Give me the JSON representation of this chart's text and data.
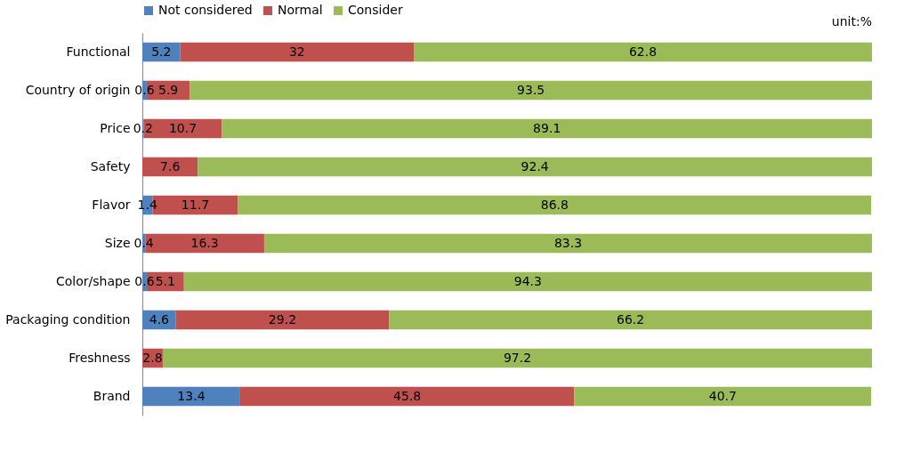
{
  "chart_data": {
    "type": "bar",
    "orientation": "horizontal",
    "stacked": true,
    "data_labels": true,
    "categories": [
      "Functional",
      "Country of origin",
      "Price",
      "Safety",
      "Flavor",
      "Size",
      "Color/shape",
      "Packaging condition",
      "Freshness",
      "Brand"
    ],
    "series": [
      {
        "name": "Not considered",
        "color": "#4f81bd",
        "values": [
          5.2,
          0.6,
          0.2,
          null,
          1.4,
          0.4,
          0.6,
          4.6,
          null,
          13.4
        ]
      },
      {
        "name": "Normal",
        "color": "#c0504d",
        "values": [
          32,
          5.9,
          10.7,
          7.6,
          11.7,
          16.3,
          5.1,
          29.2,
          2.8,
          45.8
        ]
      },
      {
        "name": "Consider",
        "color": "#9bbb59",
        "values": [
          62.8,
          93.5,
          89.1,
          92.4,
          86.8,
          83.3,
          94.3,
          66.2,
          97.2,
          40.7
        ]
      }
    ],
    "xlim": [
      0,
      100
    ],
    "tick_labels": "y",
    "legend": "top",
    "annotations": [
      "unit:%"
    ]
  }
}
